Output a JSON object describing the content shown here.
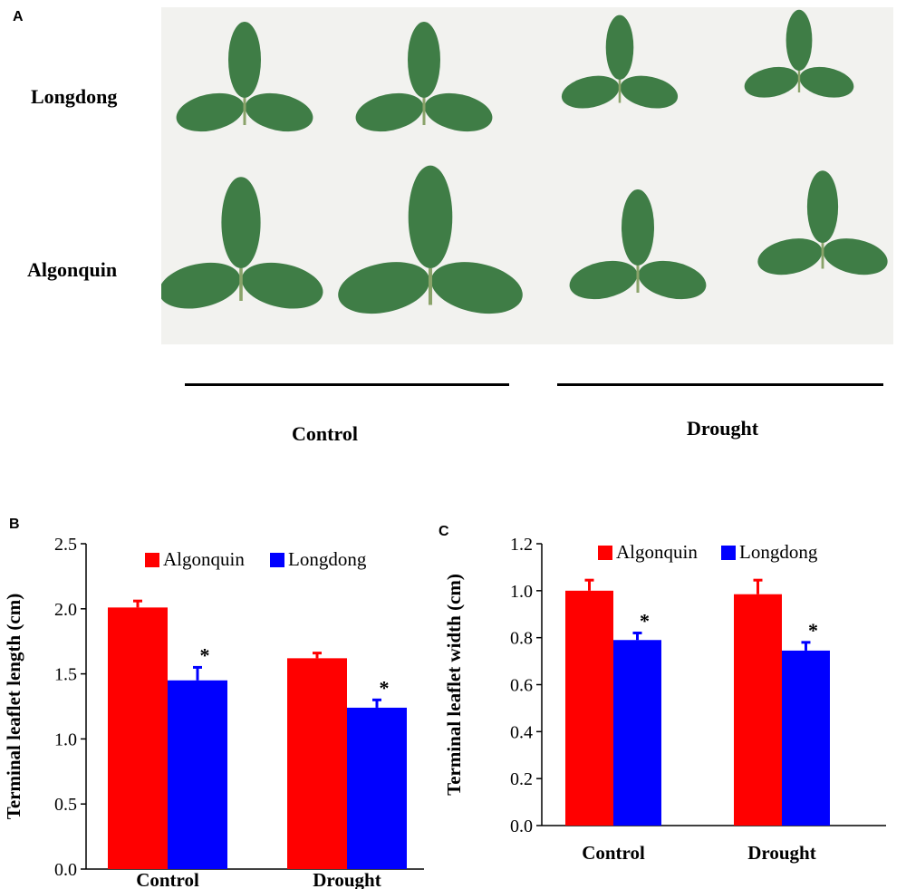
{
  "panels": {
    "a": "A",
    "b": "B",
    "c": "C"
  },
  "figure_a": {
    "row_labels": [
      "Longdong",
      "Algonquin"
    ],
    "condition_labels": [
      "Control",
      "Drought"
    ],
    "leaf_color": "#3f7d46",
    "background_color": "#f2f2ef"
  },
  "chart_data": [
    {
      "type": "bar",
      "panel": "B",
      "categories": [
        "Control",
        "Drought"
      ],
      "series": [
        {
          "name": "Algonquin",
          "color": "#ff0000",
          "values": [
            2.01,
            1.62
          ],
          "errors": [
            0.05,
            0.04
          ]
        },
        {
          "name": "Longdong",
          "color": "#0000ff",
          "values": [
            1.45,
            1.24
          ],
          "errors": [
            0.1,
            0.06
          ]
        }
      ],
      "significance": [
        "*",
        "*"
      ],
      "xlabel": "",
      "ylabel": "Terminal leaflet length (cm)",
      "ylim": [
        0,
        2.5
      ],
      "yticks": [
        "0.0",
        "0.5",
        "1.0",
        "1.5",
        "2.0",
        "2.5"
      ],
      "legend": "top"
    },
    {
      "type": "bar",
      "panel": "C",
      "categories": [
        "Control",
        "Drought"
      ],
      "series": [
        {
          "name": "Algonquin",
          "color": "#ff0000",
          "values": [
            1.0,
            0.985
          ],
          "errors": [
            0.045,
            0.06
          ]
        },
        {
          "name": "Longdong",
          "color": "#0000ff",
          "values": [
            0.79,
            0.745
          ],
          "errors": [
            0.03,
            0.035
          ]
        }
      ],
      "significance": [
        "*",
        "*"
      ],
      "xlabel": "",
      "ylabel": "Terminal leaflet width (cm)",
      "ylim": [
        0,
        1.2
      ],
      "yticks": [
        "0.0",
        "0.2",
        "0.4",
        "0.6",
        "0.8",
        "1.0",
        "1.2"
      ],
      "legend": "top"
    }
  ]
}
